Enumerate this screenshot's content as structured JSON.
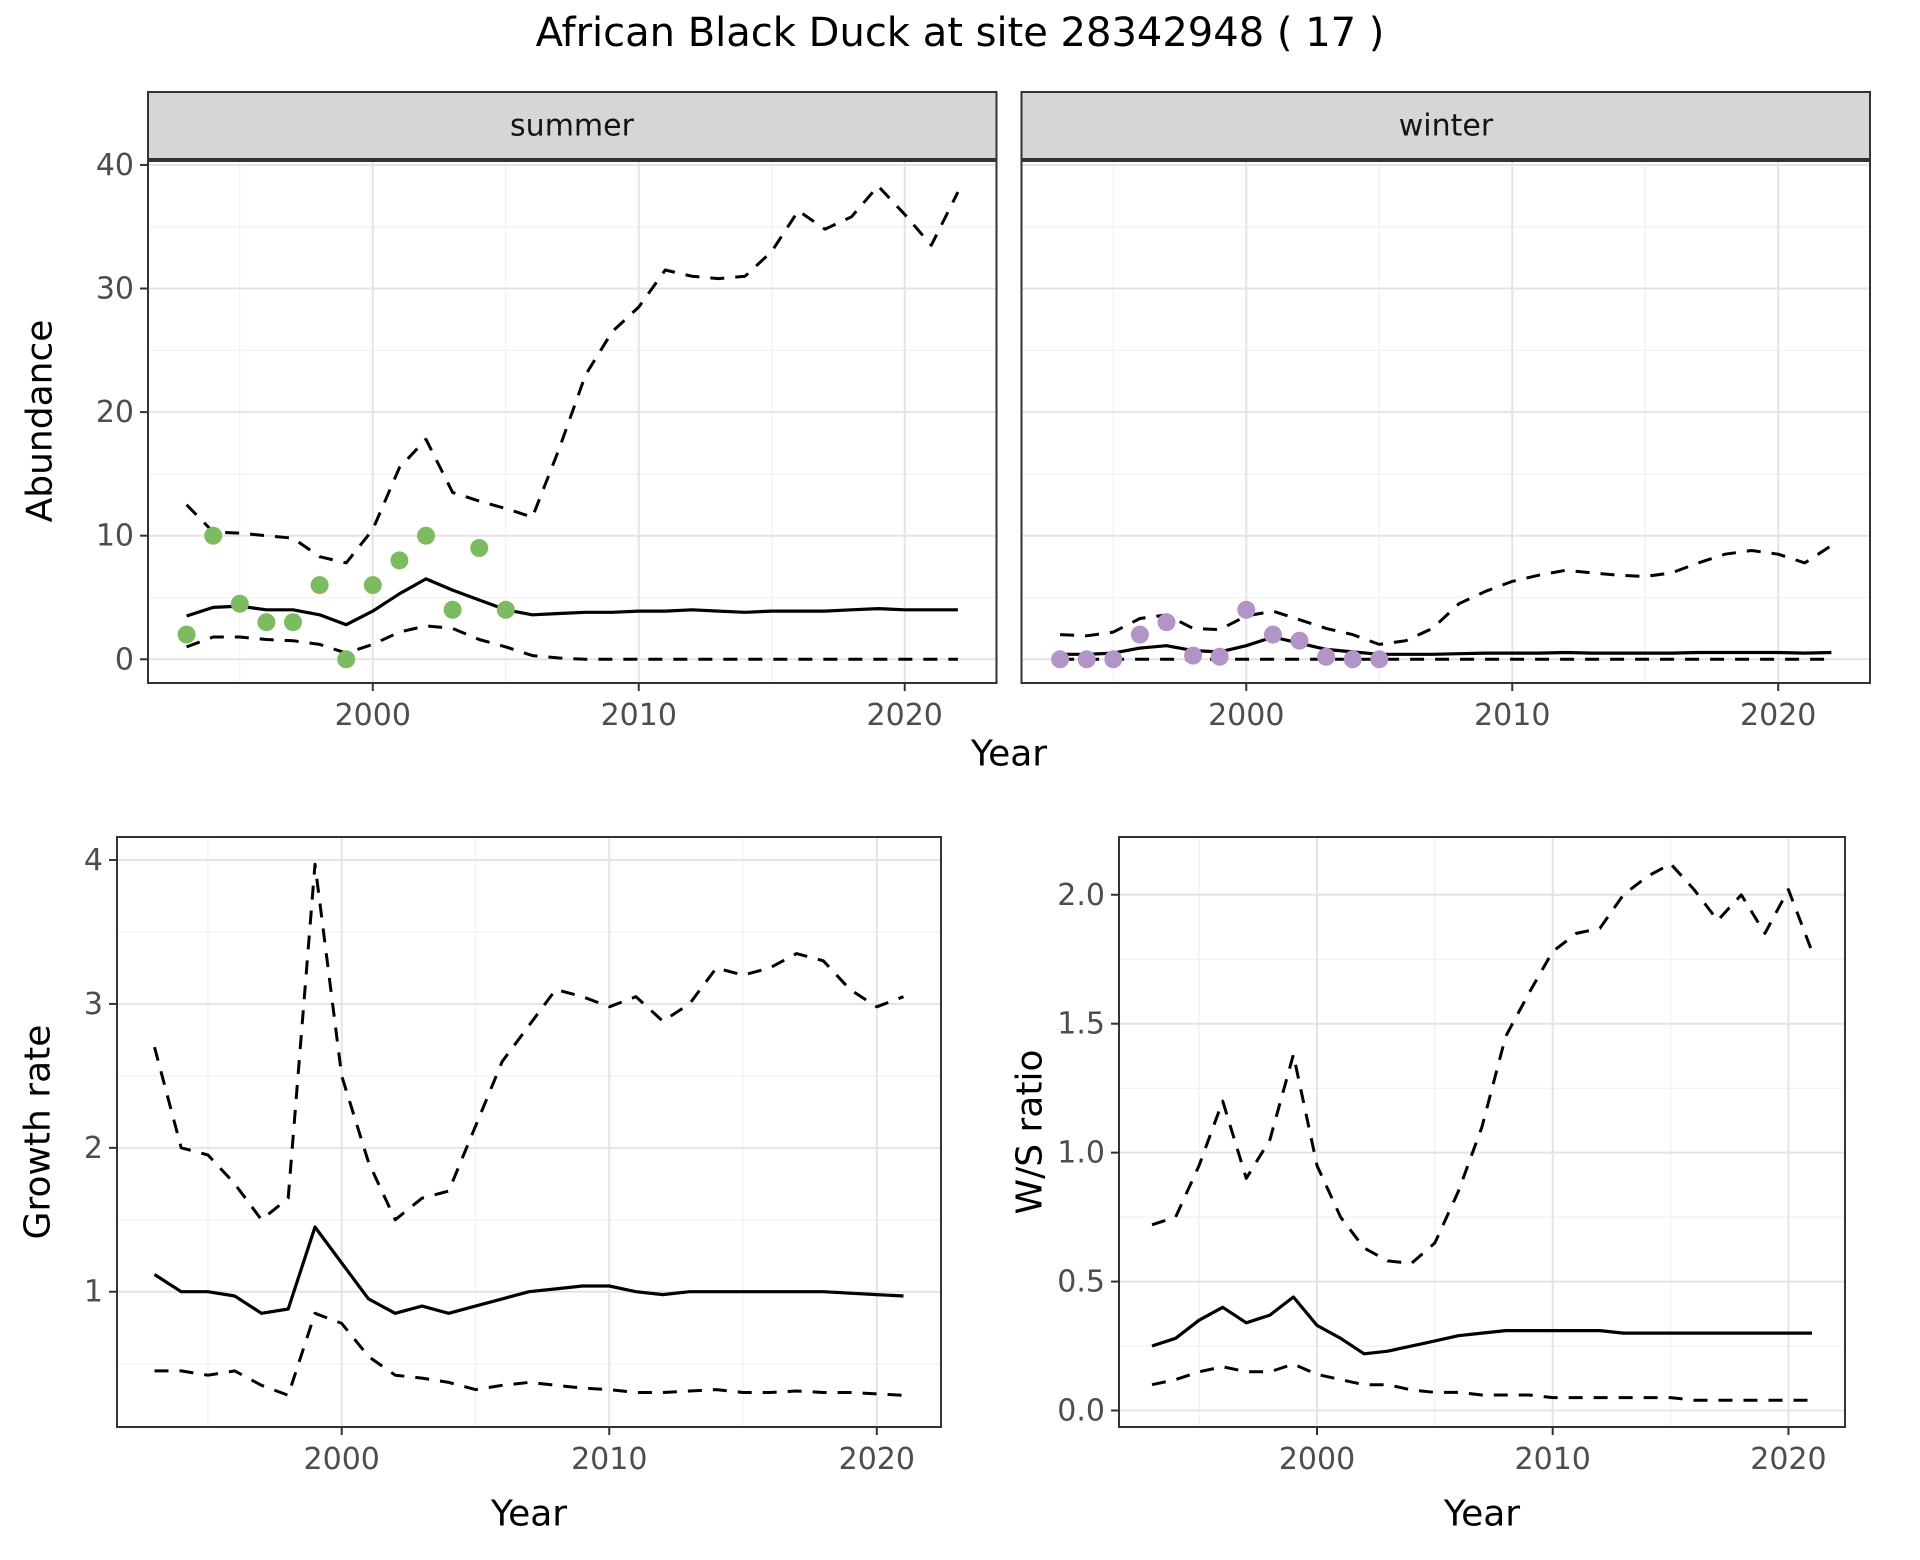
{
  "title": "African Black Duck at site 28342948 ( 17 )",
  "axis_labels": {
    "abundance": "Abundance",
    "year": "Year",
    "growth_rate": "Growth rate",
    "ws_ratio": "W/S ratio"
  },
  "facets": {
    "summer": "summer",
    "winter": "winter"
  },
  "colors": {
    "summer_points": "#7CBB5F",
    "winter_points": "#B294C7",
    "line": "#000000",
    "strip_bg": "#D6D6D6",
    "strip_border": "#333333",
    "panel_border": "#333333",
    "grid_major": "#E4E4E4",
    "grid_minor": "#F1F1F1",
    "tick_color": "#333333",
    "tick_label_color": "#4D4D4D"
  },
  "chart_data": [
    {
      "id": "abundance-summer",
      "type": "line",
      "facet": "summer",
      "title": "Abundance (summer) with 95% interval",
      "xlabel": "Year",
      "ylabel": "Abundance",
      "x_years": [
        1993,
        1994,
        1995,
        1996,
        1997,
        1998,
        1999,
        2000,
        2001,
        2002,
        2003,
        2004,
        2005,
        2006,
        2007,
        2008,
        2009,
        2010,
        2011,
        2012,
        2013,
        2014,
        2015,
        2016,
        2017,
        2018,
        2019,
        2020,
        2021,
        2022
      ],
      "series": [
        {
          "name": "median",
          "style": "solid",
          "values": [
            3.5,
            4.2,
            4.3,
            4.0,
            4.0,
            3.6,
            2.8,
            3.9,
            5.3,
            6.5,
            5.6,
            4.8,
            4.0,
            3.6,
            3.7,
            3.8,
            3.8,
            3.9,
            3.9,
            4.0,
            3.9,
            3.8,
            3.9,
            3.9,
            3.9,
            4.0,
            4.1,
            4.0,
            4.0,
            4.0
          ]
        },
        {
          "name": "upper-ci",
          "style": "dashed",
          "values": [
            12.5,
            10.3,
            10.2,
            10.0,
            9.8,
            8.3,
            7.8,
            10.5,
            15.5,
            17.8,
            13.5,
            12.8,
            12.2,
            11.5,
            17.0,
            23.0,
            26.5,
            28.5,
            31.5,
            31.0,
            30.8,
            31.0,
            33.0,
            36.3,
            34.8,
            35.8,
            38.3,
            36.0,
            33.5,
            37.8
          ]
        },
        {
          "name": "lower-ci",
          "style": "dashed",
          "values": [
            1.0,
            1.8,
            1.8,
            1.6,
            1.5,
            1.2,
            0.5,
            1.2,
            2.2,
            2.7,
            2.5,
            1.6,
            1.0,
            0.3,
            0.1,
            0,
            0,
            0,
            0,
            0,
            0,
            0,
            0,
            0,
            0,
            0,
            0,
            0,
            0,
            0
          ]
        }
      ],
      "observations": {
        "color_key": "summer_points",
        "x": [
          1993,
          1994,
          1995,
          1996,
          1997,
          1998,
          1999,
          2000,
          2001,
          2002,
          2003,
          2004,
          2005
        ],
        "y": [
          2,
          10,
          4.5,
          3,
          3,
          6,
          0,
          6,
          8,
          10,
          4,
          9,
          4
        ]
      },
      "xlim": [
        1991.55,
        2023.45
      ],
      "ylim": [
        -1.92,
        40.4
      ],
      "xticks": [
        2000,
        2010,
        2020
      ],
      "xtick_labels": [
        "2000",
        "2010",
        "2020"
      ],
      "yticks": [
        0,
        10,
        20,
        30,
        40
      ],
      "ytick_labels": [
        "0",
        "10",
        "20",
        "30",
        "40"
      ],
      "xminor": [
        1995,
        2005,
        2015
      ],
      "yminor": [
        5,
        15,
        25,
        35
      ]
    },
    {
      "id": "abundance-winter",
      "type": "line",
      "facet": "winter",
      "title": "Abundance (winter) with 95% interval",
      "xlabel": "Year",
      "ylabel": "Abundance",
      "x_years": [
        1993,
        1994,
        1995,
        1996,
        1997,
        1998,
        1999,
        2000,
        2001,
        2002,
        2003,
        2004,
        2005,
        2006,
        2007,
        2008,
        2009,
        2010,
        2011,
        2012,
        2013,
        2014,
        2015,
        2016,
        2017,
        2018,
        2019,
        2020,
        2021,
        2022
      ],
      "series": [
        {
          "name": "median",
          "style": "solid",
          "values": [
            0.4,
            0.4,
            0.5,
            0.9,
            1.1,
            0.7,
            0.6,
            1.1,
            1.8,
            1.3,
            0.8,
            0.6,
            0.4,
            0.4,
            0.4,
            0.45,
            0.5,
            0.5,
            0.5,
            0.55,
            0.5,
            0.5,
            0.5,
            0.5,
            0.55,
            0.55,
            0.55,
            0.55,
            0.5,
            0.55
          ]
        },
        {
          "name": "upper-ci",
          "style": "dashed",
          "values": [
            2.0,
            1.9,
            2.2,
            3.3,
            3.6,
            2.5,
            2.4,
            3.5,
            3.9,
            3.2,
            2.5,
            2.0,
            1.2,
            1.5,
            2.5,
            4.5,
            5.5,
            6.3,
            6.8,
            7.2,
            7.0,
            6.8,
            6.7,
            7.0,
            7.8,
            8.5,
            8.8,
            8.5,
            7.8,
            9.2
          ]
        },
        {
          "name": "lower-ci",
          "style": "dashed",
          "values": [
            0,
            0,
            0,
            0,
            0,
            0,
            0,
            0,
            0,
            0,
            0,
            0,
            0,
            0,
            0,
            0,
            0,
            0,
            0,
            0,
            0,
            0,
            0,
            0,
            0,
            0,
            0,
            0,
            0,
            0
          ]
        }
      ],
      "observations": {
        "color_key": "winter_points",
        "x": [
          1993,
          1994,
          1995,
          1996,
          1997,
          1998,
          1999,
          2000,
          2001,
          2002,
          2003,
          2004,
          2005
        ],
        "y": [
          0,
          0,
          0,
          2,
          3,
          0.3,
          0.2,
          4,
          2,
          1.5,
          0.2,
          0,
          0
        ]
      },
      "xlim": [
        1991.55,
        2023.45
      ],
      "ylim": [
        -1.92,
        40.4
      ],
      "xticks": [
        2000,
        2010,
        2020
      ],
      "xtick_labels": [
        "2000",
        "2010",
        "2020"
      ],
      "yticks": [
        0,
        10,
        20,
        30,
        40
      ],
      "ytick_labels": [
        "0",
        "10",
        "20",
        "30",
        "40"
      ],
      "xminor": [
        1995,
        2005,
        2015
      ],
      "yminor": [
        5,
        15,
        25,
        35
      ]
    },
    {
      "id": "growth-rate",
      "type": "line",
      "facet": null,
      "title": "Growth rate with 95% interval",
      "xlabel": "Year",
      "ylabel": "Growth rate",
      "x_years": [
        1993,
        1994,
        1995,
        1996,
        1997,
        1998,
        1999,
        2000,
        2001,
        2002,
        2003,
        2004,
        2005,
        2006,
        2007,
        2008,
        2009,
        2010,
        2011,
        2012,
        2013,
        2014,
        2015,
        2016,
        2017,
        2018,
        2019,
        2020,
        2021
      ],
      "series": [
        {
          "name": "median",
          "style": "solid",
          "values": [
            1.12,
            1.0,
            1.0,
            0.97,
            0.85,
            0.88,
            1.45,
            1.2,
            0.95,
            0.85,
            0.9,
            0.85,
            0.9,
            0.95,
            1.0,
            1.02,
            1.04,
            1.04,
            1.0,
            0.98,
            1.0,
            1.0,
            1.0,
            1.0,
            1.0,
            1.0,
            0.99,
            0.98,
            0.97
          ]
        },
        {
          "name": "upper-ci",
          "style": "dashed",
          "values": [
            2.7,
            2.0,
            1.95,
            1.75,
            1.5,
            1.65,
            3.97,
            2.5,
            1.9,
            1.5,
            1.65,
            1.7,
            2.15,
            2.6,
            2.85,
            3.1,
            3.05,
            2.98,
            3.05,
            2.88,
            3.0,
            3.25,
            3.2,
            3.25,
            3.35,
            3.3,
            3.1,
            2.98,
            3.05
          ]
        },
        {
          "name": "lower-ci",
          "style": "dashed",
          "values": [
            0.45,
            0.45,
            0.42,
            0.45,
            0.35,
            0.28,
            0.85,
            0.78,
            0.55,
            0.42,
            0.4,
            0.37,
            0.32,
            0.35,
            0.37,
            0.35,
            0.33,
            0.32,
            0.3,
            0.3,
            0.31,
            0.32,
            0.3,
            0.3,
            0.31,
            0.3,
            0.3,
            0.29,
            0.28
          ]
        }
      ],
      "observations": null,
      "xlim": [
        1991.6,
        2022.4
      ],
      "ylim": [
        0.06,
        4.16
      ],
      "xticks": [
        2000,
        2010,
        2020
      ],
      "xtick_labels": [
        "2000",
        "2010",
        "2020"
      ],
      "yticks": [
        1,
        2,
        3,
        4
      ],
      "ytick_labels": [
        "1",
        "2",
        "3",
        "4"
      ],
      "xminor": [
        1995,
        2005,
        2015
      ],
      "yminor": [
        0.5,
        1.5,
        2.5,
        3.5
      ]
    },
    {
      "id": "ws-ratio",
      "type": "line",
      "facet": null,
      "title": "Winter/Summer ratio with 95% interval",
      "xlabel": "Year",
      "ylabel": "W/S ratio",
      "x_years": [
        1993,
        1994,
        1995,
        1996,
        1997,
        1998,
        1999,
        2000,
        2001,
        2002,
        2003,
        2004,
        2005,
        2006,
        2007,
        2008,
        2009,
        2010,
        2011,
        2012,
        2013,
        2014,
        2015,
        2016,
        2017,
        2018,
        2019,
        2020,
        2021
      ],
      "series": [
        {
          "name": "median",
          "style": "solid",
          "values": [
            0.25,
            0.28,
            0.35,
            0.4,
            0.34,
            0.37,
            0.44,
            0.33,
            0.28,
            0.22,
            0.23,
            0.25,
            0.27,
            0.29,
            0.3,
            0.31,
            0.31,
            0.31,
            0.31,
            0.31,
            0.3,
            0.3,
            0.3,
            0.3,
            0.3,
            0.3,
            0.3,
            0.3,
            0.3
          ]
        },
        {
          "name": "upper-ci",
          "style": "dashed",
          "values": [
            0.72,
            0.75,
            0.95,
            1.2,
            0.9,
            1.05,
            1.38,
            0.95,
            0.75,
            0.63,
            0.58,
            0.57,
            0.65,
            0.85,
            1.1,
            1.45,
            1.62,
            1.78,
            1.85,
            1.87,
            2.0,
            2.07,
            2.12,
            2.02,
            1.9,
            2.0,
            1.85,
            2.02,
            1.78
          ]
        },
        {
          "name": "lower-ci",
          "style": "dashed",
          "values": [
            0.1,
            0.12,
            0.15,
            0.17,
            0.15,
            0.15,
            0.18,
            0.14,
            0.12,
            0.1,
            0.1,
            0.08,
            0.07,
            0.07,
            0.06,
            0.06,
            0.06,
            0.05,
            0.05,
            0.05,
            0.05,
            0.05,
            0.05,
            0.04,
            0.04,
            0.04,
            0.04,
            0.04,
            0.04
          ]
        }
      ],
      "observations": null,
      "xlim": [
        1991.6,
        2022.4
      ],
      "ylim": [
        -0.064,
        2.224
      ],
      "xticks": [
        2000,
        2010,
        2020
      ],
      "xtick_labels": [
        "2000",
        "2010",
        "2020"
      ],
      "yticks": [
        0,
        0.5,
        1,
        1.5,
        2
      ],
      "ytick_labels": [
        "0.0",
        "0.5",
        "1.0",
        "1.5",
        "2.0"
      ],
      "xminor": [
        1995,
        2005,
        2015
      ],
      "yminor": [
        0.25,
        0.75,
        1.25,
        1.75
      ]
    }
  ]
}
